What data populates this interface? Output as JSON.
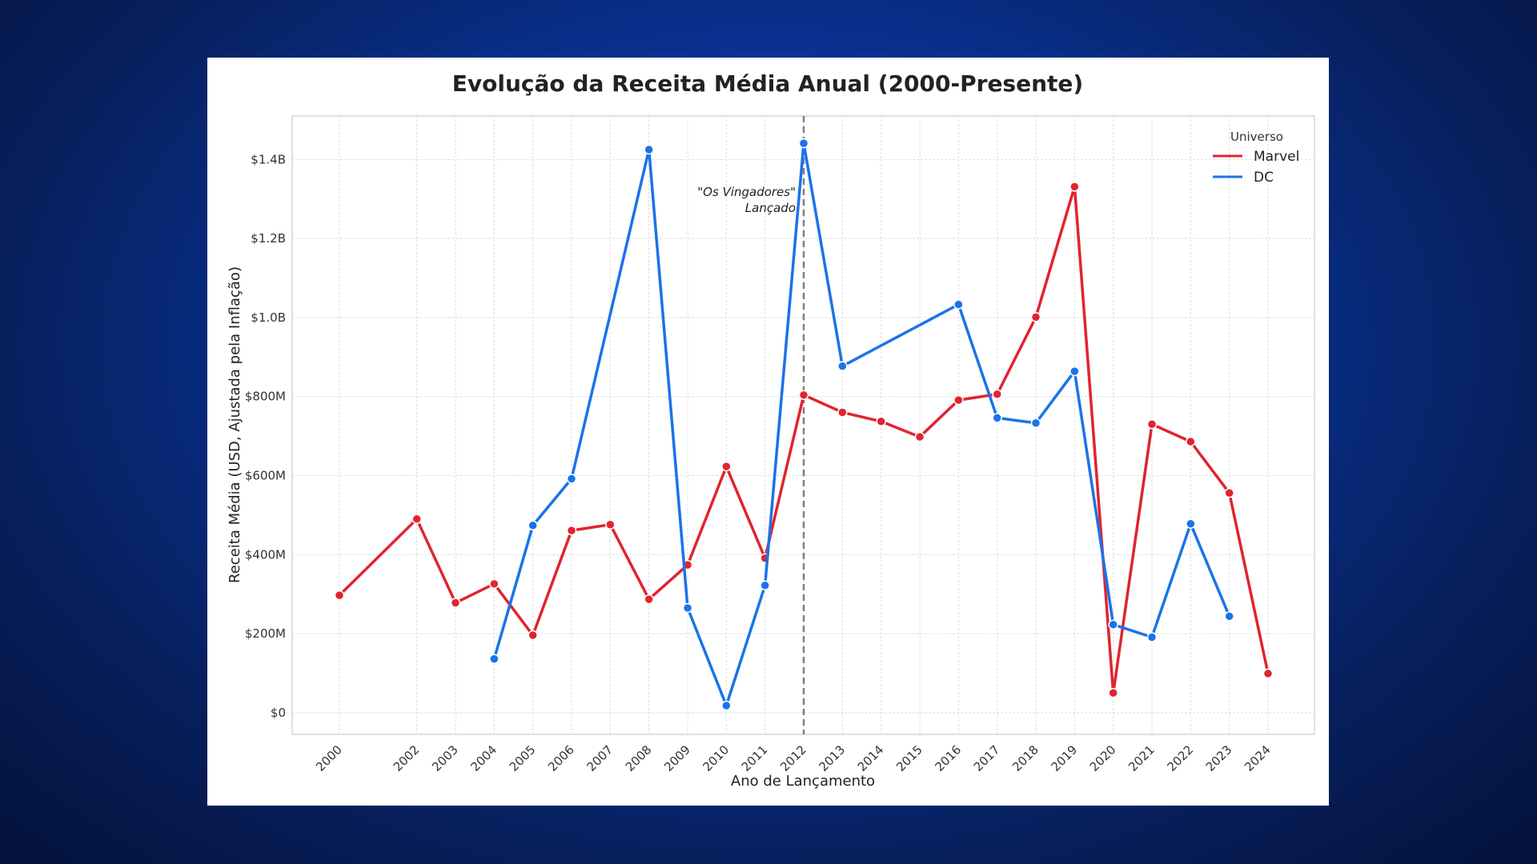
{
  "chart_data": {
    "type": "line",
    "title": "Evolução da Receita Média Anual (2000-Presente)",
    "xlabel": "Ano de Lançamento",
    "ylabel": "Receita Média (USD, Ajustada pela Inflação)",
    "x": [
      2000,
      2002,
      2003,
      2004,
      2005,
      2006,
      2007,
      2008,
      2009,
      2010,
      2011,
      2012,
      2013,
      2014,
      2015,
      2016,
      2017,
      2018,
      2019,
      2020,
      2021,
      2022,
      2023,
      2024
    ],
    "x_tick_labels": [
      "2000",
      "2002",
      "2003",
      "2004",
      "2005",
      "2006",
      "2007",
      "2008",
      "2009",
      "2010",
      "2011",
      "2012",
      "2013",
      "2014",
      "2015",
      "2016",
      "2017",
      "2018",
      "2019",
      "2020",
      "2021",
      "2022",
      "2023",
      "2024"
    ],
    "ylim": [
      -55000000,
      1510000000
    ],
    "y_ticks": [
      0,
      200000000,
      400000000,
      600000000,
      800000000,
      1000000000,
      1200000000,
      1400000000
    ],
    "y_tick_labels": [
      "$0",
      "$200M",
      "$400M",
      "$600M",
      "$800M",
      "$1.0B",
      "$1.2B",
      "$1.4B"
    ],
    "grid": true,
    "legend": {
      "title": "Universo",
      "position": "top-right"
    },
    "series": [
      {
        "name": "Marvel",
        "color": "#e0242f",
        "points": [
          [
            2000,
            297000000
          ],
          [
            2002,
            490000000
          ],
          [
            2003,
            278000000
          ],
          [
            2004,
            326000000
          ],
          [
            2005,
            196000000
          ],
          [
            2006,
            461000000
          ],
          [
            2007,
            476000000
          ],
          [
            2008,
            287000000
          ],
          [
            2009,
            374000000
          ],
          [
            2010,
            623000000
          ],
          [
            2011,
            391000000
          ],
          [
            2012,
            804000000
          ],
          [
            2013,
            760000000
          ],
          [
            2014,
            737000000
          ],
          [
            2015,
            698000000
          ],
          [
            2016,
            791000000
          ],
          [
            2017,
            806000000
          ],
          [
            2018,
            1001000000
          ],
          [
            2019,
            1331000000
          ],
          [
            2020,
            50000000
          ],
          [
            2021,
            730000000
          ],
          [
            2022,
            686000000
          ],
          [
            2023,
            556000000
          ],
          [
            2024,
            99000000
          ]
        ]
      },
      {
        "name": "DC",
        "color": "#1a73e8",
        "points": [
          [
            2004,
            136000000
          ],
          [
            2005,
            474000000
          ],
          [
            2006,
            592000000
          ],
          [
            2008,
            1425000000
          ],
          [
            2009,
            265000000
          ],
          [
            2010,
            18000000
          ],
          [
            2011,
            322000000
          ],
          [
            2012,
            1441000000
          ],
          [
            2013,
            877000000
          ],
          [
            2016,
            1033000000
          ],
          [
            2017,
            746000000
          ],
          [
            2018,
            733000000
          ],
          [
            2019,
            864000000
          ],
          [
            2020,
            223000000
          ],
          [
            2021,
            191000000
          ],
          [
            2022,
            478000000
          ],
          [
            2023,
            244000000
          ]
        ]
      }
    ],
    "annotations": [
      {
        "x": 2012,
        "type": "vertical-dashed-line",
        "text_line1": "\"Os Vingadores\"",
        "text_line2": "Lançado"
      }
    ]
  }
}
